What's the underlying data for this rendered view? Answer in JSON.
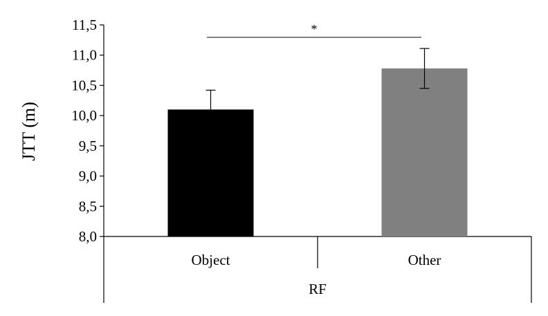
{
  "chart_data": {
    "type": "bar",
    "categories": [
      "Object",
      "Other"
    ],
    "values": [
      10.1,
      10.78
    ],
    "error": [
      0.32,
      0.33
    ],
    "colors": [
      "#000000",
      "#808080"
    ],
    "ylabel": "JTT  (m)",
    "xgroup_label": "RF",
    "ylim": [
      8.0,
      11.5
    ],
    "yticks": [
      "8,0",
      "8,5",
      "9,0",
      "9,5",
      "10,0",
      "10,5",
      "11,0",
      "11,5"
    ],
    "significance": {
      "between": [
        "Object",
        "Other"
      ],
      "label": "*"
    },
    "grid": false,
    "legend": "none"
  }
}
